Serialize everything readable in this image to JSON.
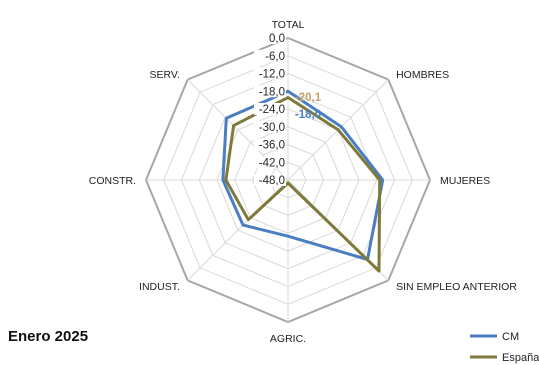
{
  "chart_data": {
    "type": "radar",
    "period_label": "Enero 2025",
    "categories": [
      "TOTAL",
      "HOMBRES",
      "MUJERES",
      "SIN EMPLEO ANTERIOR",
      "AGRIC.",
      "INDUST.",
      "CONSTR.",
      "SERV."
    ],
    "radial_ticks": [
      "0,0",
      "-6,0",
      "-12,0",
      "-18,0",
      "-24,0",
      "-30,0",
      "-36,0",
      "-42,0",
      "-48,0"
    ],
    "rlim": [
      -48,
      0
    ],
    "grid": true,
    "legend_position": "bottom-right",
    "series": [
      {
        "name": "CM",
        "color": "#4a7ec2",
        "values": [
          -18.0,
          -22.5,
          -16.0,
          -10.0,
          -29.0,
          -26.5,
          -26.0,
          -18.5
        ],
        "labels": [
          "-18,0",
          "",
          "",
          "",
          "",
          "",
          "",
          ""
        ]
      },
      {
        "name": "España",
        "color": "#7f7a3a",
        "values": [
          -20.1,
          -24.0,
          -17.0,
          -4.5,
          -47.0,
          -29.0,
          -27.0,
          -22.0
        ],
        "labels": [
          "-20,1",
          "",
          "",
          "",
          "",
          "",
          "",
          ""
        ]
      }
    ],
    "label_colors": {
      "España": "#c3a06a",
      "CM": "#4a7ec2"
    }
  }
}
